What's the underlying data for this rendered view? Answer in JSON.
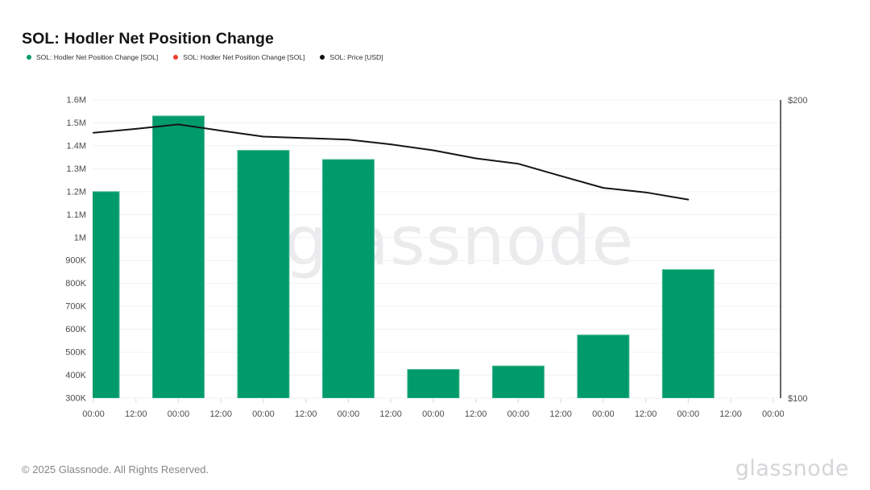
{
  "page": {
    "title": "SOL: Hodler Net Position Change",
    "watermark": "glassnode",
    "footer": {
      "copyright": "© 2025 Glassnode. All Rights Reserved.",
      "brand": "glassnode"
    }
  },
  "legend": [
    {
      "label": "SOL: Hodler Net Position Change [SOL]",
      "color": "#009b6b",
      "shape": "dot"
    },
    {
      "label": "SOL: Hodler Net Position Change [SOL]",
      "color": "#ee3e2c",
      "shape": "dot"
    },
    {
      "label": "SOL: Price [USD]",
      "color": "#111111",
      "shape": "dot"
    }
  ],
  "chart_data": {
    "type": "bar+line",
    "title": "SOL: Hodler Net Position Change",
    "grid": "horizontal",
    "legend_position": "top-left",
    "x_tick_labels": [
      "00:00",
      "12:00",
      "00:00",
      "12:00",
      "00:00",
      "12:00",
      "00:00",
      "12:00",
      "00:00",
      "12:00",
      "00:00",
      "12:00",
      "00:00",
      "12:00",
      "00:00",
      "12:00",
      "00:00"
    ],
    "left_axis": {
      "unit": "SOL",
      "min": 300000,
      "max": 1600000,
      "step": 100000,
      "tick_labels": [
        "1.6M",
        "1.5M",
        "1.4M",
        "1.3M",
        "1.2M",
        "1.1M",
        "1M",
        "900K",
        "800K",
        "700K",
        "600K",
        "500K",
        "400K",
        "300K"
      ]
    },
    "right_axis": {
      "unit": "USD",
      "min": 100,
      "max": 200,
      "tick_labels": [
        "$200",
        "$100"
      ],
      "tick_values": [
        200,
        100
      ]
    },
    "series": [
      {
        "name": "SOL: Hodler Net Position Change [SOL]",
        "type": "bar",
        "axis": "left",
        "color": "#009b6b",
        "edge_color": "#45b692",
        "points": [
          {
            "tick": 0,
            "value": 1200000
          },
          {
            "tick": 2,
            "value": 1530000
          },
          {
            "tick": 4,
            "value": 1380000
          },
          {
            "tick": 6,
            "value": 1340000
          },
          {
            "tick": 8,
            "value": 425000
          },
          {
            "tick": 10,
            "value": 440000
          },
          {
            "tick": 12,
            "value": 575000
          },
          {
            "tick": 14,
            "value": 860000
          }
        ]
      },
      {
        "name": "SOL: Hodler Net Position Change [SOL]",
        "type": "bar",
        "axis": "left",
        "color": "#ee3e2c",
        "edge_color": "#ee3e2c",
        "points": []
      },
      {
        "name": "SOL: Price [USD]",
        "type": "line",
        "axis": "right",
        "color": "#151515",
        "points": [
          {
            "tick": 0,
            "value": 189.0
          },
          {
            "tick": 1,
            "value": 190.3
          },
          {
            "tick": 2,
            "value": 191.8
          },
          {
            "tick": 3,
            "value": 189.7
          },
          {
            "tick": 4,
            "value": 187.7
          },
          {
            "tick": 5,
            "value": 187.2
          },
          {
            "tick": 6,
            "value": 186.7
          },
          {
            "tick": 7,
            "value": 185.1
          },
          {
            "tick": 8,
            "value": 183.1
          },
          {
            "tick": 9,
            "value": 180.4
          },
          {
            "tick": 10,
            "value": 178.6
          },
          {
            "tick": 11,
            "value": 174.5
          },
          {
            "tick": 12,
            "value": 170.5
          },
          {
            "tick": 13,
            "value": 169.0
          },
          {
            "tick": 14,
            "value": 166.6
          }
        ]
      }
    ]
  }
}
